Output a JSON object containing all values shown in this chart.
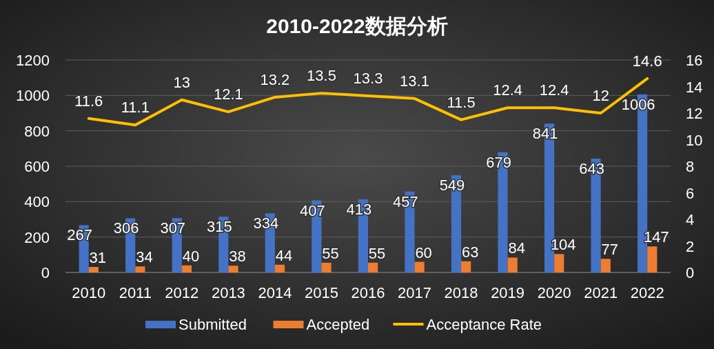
{
  "chart_data": {
    "type": "bar",
    "title": "2010-2022数据分析",
    "categories": [
      "2010",
      "2011",
      "2012",
      "2013",
      "2014",
      "2015",
      "2016",
      "2017",
      "2018",
      "2019",
      "2020",
      "2021",
      "2022"
    ],
    "series": [
      {
        "name": "Submitted",
        "color": "#4472c4",
        "values": [
          267,
          306,
          307,
          315,
          334,
          407,
          413,
          457,
          549,
          679,
          841,
          643,
          1006
        ]
      },
      {
        "name": "Accepted",
        "color": "#ed7d31",
        "values": [
          31,
          34,
          40,
          38,
          44,
          55,
          55,
          60,
          63,
          84,
          104,
          77,
          147
        ]
      },
      {
        "name": "Acceptance Rate",
        "type": "line",
        "axis": "y2",
        "color": "#ffc000",
        "values": [
          11.6,
          11.1,
          13,
          12.1,
          13.2,
          13.5,
          13.3,
          13.1,
          11.5,
          12.4,
          12.4,
          12,
          14.6
        ]
      }
    ],
    "ylim": [
      0,
      1200
    ],
    "yticks": [
      0,
      200,
      400,
      600,
      800,
      1000,
      1200
    ],
    "y2lim": [
      0,
      16
    ],
    "y2ticks": [
      0,
      2,
      4,
      6,
      8,
      10,
      12,
      14,
      16
    ],
    "grid": "y",
    "legend": "bottom",
    "data_labels": true
  }
}
